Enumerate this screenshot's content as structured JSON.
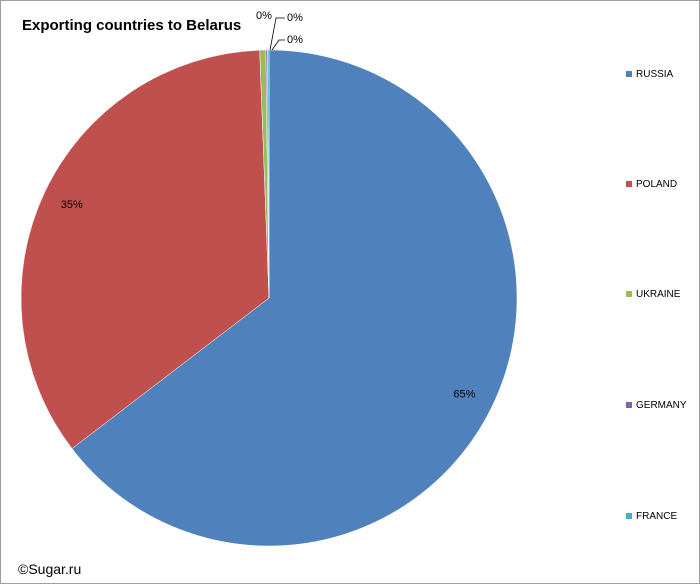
{
  "title": "Exporting countries to Belarus",
  "copyright": "©Sugar.ru",
  "chart_data": {
    "type": "pie",
    "title": "Exporting countries to Belarus",
    "legend_position": "right",
    "slices": [
      {
        "label": "RUSSIA",
        "percent": 65,
        "value_text": "65%",
        "color": "#4f81bd"
      },
      {
        "label": "POLAND",
        "percent": 35,
        "value_text": "35%",
        "color": "#c0504d"
      },
      {
        "label": "UKRAINE",
        "percent": 0.4,
        "value_text": "0%",
        "color": "#9bbb59"
      },
      {
        "label": "GERMANY",
        "percent": 0.1,
        "value_text": "0%",
        "color": "#8064a2"
      },
      {
        "label": "FRANCE",
        "percent": 0.1,
        "value_text": "0%",
        "color": "#4bacc6"
      }
    ]
  }
}
